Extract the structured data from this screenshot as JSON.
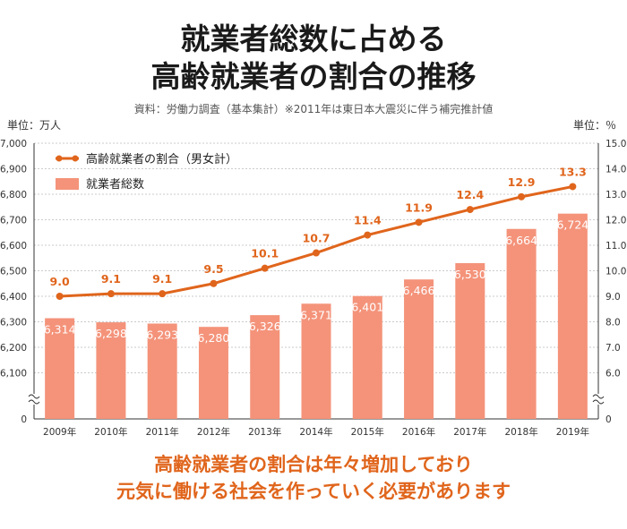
{
  "title_line1": "就業者総数に占める",
  "title_line2": "高齢就業者の割合の推移",
  "source": "資料：労働力調査（基本集計）※2011年は東日本大震災に伴う補完推計値",
  "unit_left": "単位：万人",
  "unit_right": "単位：％",
  "bottom_line1": "高齢就業者の割合は年々増加しており",
  "bottom_line2": "元気に働ける社会を作っていく必要があります",
  "colors": {
    "bar": "#f4937a",
    "line": "#e0651c",
    "axis": "#333333",
    "grid": "#bbbbbb"
  },
  "chart_data": {
    "type": "bar+line",
    "categories": [
      "2009年",
      "2010年",
      "2011年",
      "2012年",
      "2013年",
      "2014年",
      "2015年",
      "2016年",
      "2017年",
      "2018年",
      "2019年"
    ],
    "bar_series": {
      "name": "就業者総数",
      "values": [
        6314,
        6298,
        6293,
        6280,
        6326,
        6371,
        6401,
        6466,
        6530,
        6664,
        6724
      ]
    },
    "line_series": {
      "name": "高齢就業者の割合（男女計）",
      "values": [
        9.0,
        9.1,
        9.1,
        9.5,
        10.1,
        10.7,
        11.4,
        11.9,
        12.4,
        12.9,
        13.3
      ]
    },
    "left_axis": {
      "ticks": [
        "0",
        "6,100",
        "6,200",
        "6,300",
        "6,400",
        "6,500",
        "6,600",
        "6,700",
        "6,800",
        "6,900",
        "7,000"
      ],
      "range": [
        6000,
        7000
      ],
      "broken": true
    },
    "right_axis": {
      "ticks": [
        "0",
        "6.0",
        "7.0",
        "8.0",
        "9.0",
        "10.0",
        "11.0",
        "12.0",
        "13.0",
        "14.0",
        "15.0"
      ],
      "range": [
        5,
        15
      ],
      "broken": true
    },
    "grid": true,
    "legend_position": "top-left"
  }
}
